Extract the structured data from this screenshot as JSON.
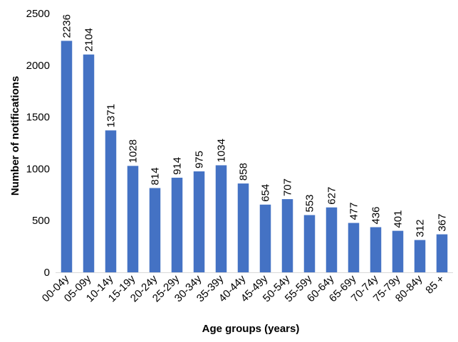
{
  "chart_data": {
    "type": "bar",
    "title": "",
    "xlabel": "Age groups (years)",
    "ylabel": "Number of notifications",
    "ylim": [
      0,
      2500
    ],
    "yticks": [
      0,
      500,
      1000,
      1500,
      2000,
      2500
    ],
    "grid": false,
    "legend": "none",
    "bar_color": "#4472C4",
    "categories": [
      "00-04y",
      "05-09y",
      "10-14y",
      "15-19y",
      "20-24y",
      "25-29y",
      "30-34y",
      "35-39y",
      "40-44y",
      "45-49y",
      "50-54y",
      "55-59y",
      "60-64y",
      "65-69y",
      "70-74y",
      "75-79y",
      "80-84y",
      "85 +"
    ],
    "values": [
      2236,
      2104,
      1371,
      1028,
      814,
      914,
      975,
      1034,
      858,
      654,
      707,
      553,
      627,
      477,
      436,
      401,
      312,
      367
    ]
  }
}
